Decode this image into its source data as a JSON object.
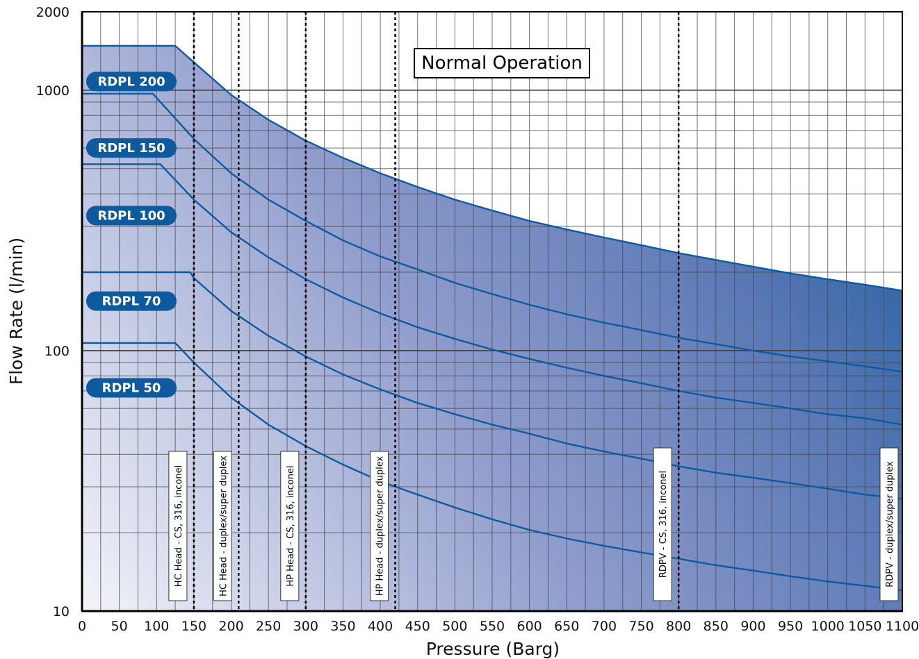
{
  "chart_data": {
    "type": "line",
    "title": "",
    "banner": "Normal Operation",
    "xlabel": "Pressure (Barg)",
    "ylabel": "Flow Rate (l/min)",
    "xlim": [
      0,
      1100
    ],
    "ylim": [
      10,
      2000
    ],
    "yscale": "log",
    "x_ticks": [
      0,
      50,
      100,
      150,
      200,
      250,
      300,
      350,
      400,
      450,
      500,
      550,
      600,
      650,
      700,
      750,
      800,
      850,
      900,
      950,
      1000,
      1050,
      1100
    ],
    "x_tick_labels": [
      "0",
      "50",
      "100",
      "150",
      "200",
      "250",
      "300",
      "350",
      "400",
      "450",
      "500",
      "550",
      "600",
      "650",
      "700",
      "750",
      "800",
      "850",
      "900",
      "950",
      "1000",
      "1050",
      "1100"
    ],
    "y_tick_labels": [
      {
        "value": 10,
        "label": "10"
      },
      {
        "value": 100,
        "label": "100"
      },
      {
        "value": 1000,
        "label": "1000"
      },
      {
        "value": 2000,
        "label": "2000"
      }
    ],
    "grid": true,
    "series": [
      {
        "name": "RDPL 200",
        "label_flow": 1080,
        "x": [
          0,
          125,
          150,
          200,
          250,
          300,
          350,
          400,
          450,
          500,
          550,
          600,
          650,
          700,
          750,
          800,
          850,
          900,
          950,
          1000,
          1050,
          1100
        ],
        "y": [
          1480,
          1480,
          1280,
          960,
          770,
          640,
          550,
          480,
          425,
          380,
          345,
          315,
          292,
          272,
          254,
          237,
          223,
          210,
          198,
          188,
          179,
          170
        ]
      },
      {
        "name": "RDPL 150",
        "label_flow": 600,
        "x": [
          0,
          95,
          150,
          200,
          250,
          300,
          350,
          400,
          450,
          500,
          550,
          600,
          650,
          700,
          750,
          800,
          850,
          900,
          950,
          1000,
          1050,
          1100
        ],
        "y": [
          970,
          970,
          650,
          480,
          380,
          315,
          265,
          230,
          205,
          182,
          165,
          150,
          138,
          128,
          120,
          112,
          106,
          100,
          95,
          91,
          87,
          83
        ]
      },
      {
        "name": "RDPL 100",
        "label_flow": 330,
        "x": [
          0,
          105,
          150,
          200,
          250,
          300,
          350,
          400,
          450,
          500,
          550,
          600,
          650,
          700,
          750,
          800,
          850,
          900,
          950,
          1000,
          1050,
          1100
        ],
        "y": [
          520,
          520,
          380,
          285,
          228,
          188,
          160,
          139,
          123,
          111,
          101,
          93,
          86,
          80,
          75,
          70,
          66,
          63,
          60,
          57,
          55,
          52
        ]
      },
      {
        "name": "RDPL 70",
        "label_flow": 155,
        "x": [
          0,
          145,
          150,
          200,
          250,
          300,
          350,
          400,
          450,
          500,
          550,
          600,
          650,
          700,
          750,
          800,
          850,
          900,
          950,
          1000,
          1050,
          1100
        ],
        "y": [
          200,
          200,
          190,
          142,
          114,
          95,
          81,
          71,
          63,
          57,
          52,
          48,
          44,
          41,
          38.5,
          36,
          34,
          32.5,
          31,
          29.5,
          28,
          27
        ]
      },
      {
        "name": "RDPL 50",
        "label_flow": 72,
        "x": [
          0,
          125,
          150,
          200,
          250,
          300,
          350,
          400,
          450,
          500,
          550,
          600,
          650,
          700,
          750,
          800,
          850,
          900,
          950,
          1000,
          1050,
          1100
        ],
        "y": [
          107,
          107,
          90,
          66,
          52,
          43,
          36.5,
          31.5,
          28,
          25,
          22.5,
          20.5,
          19,
          17.8,
          16.8,
          15.9,
          15,
          14.3,
          13.6,
          13,
          12.5,
          12
        ]
      }
    ],
    "pressure_limits": [
      {
        "pressure": 150,
        "label": "HC Head - CS, 316, inconel",
        "dashed": true
      },
      {
        "pressure": 210,
        "label": "HC Head - duplex/super duplex",
        "dashed": true
      },
      {
        "pressure": 300,
        "label": "HP Head - CS, 316, inconel",
        "dashed": true
      },
      {
        "pressure": 420,
        "label": "HP Head - duplex/super duplex",
        "dashed": true
      },
      {
        "pressure": 800,
        "label": "RDPV - CS, 316, inconel",
        "dashed": true
      },
      {
        "pressure": 1100,
        "label": "RDPV - duplex/super duplex",
        "dashed": false
      }
    ],
    "colors": {
      "curve": "#0d5a9e",
      "label_fill": "#0d5a9e",
      "fill_light": "#eef0f8",
      "fill_mid": "#8593c6",
      "fill_dark": "#1d5c9b",
      "grid": "#444444"
    }
  }
}
